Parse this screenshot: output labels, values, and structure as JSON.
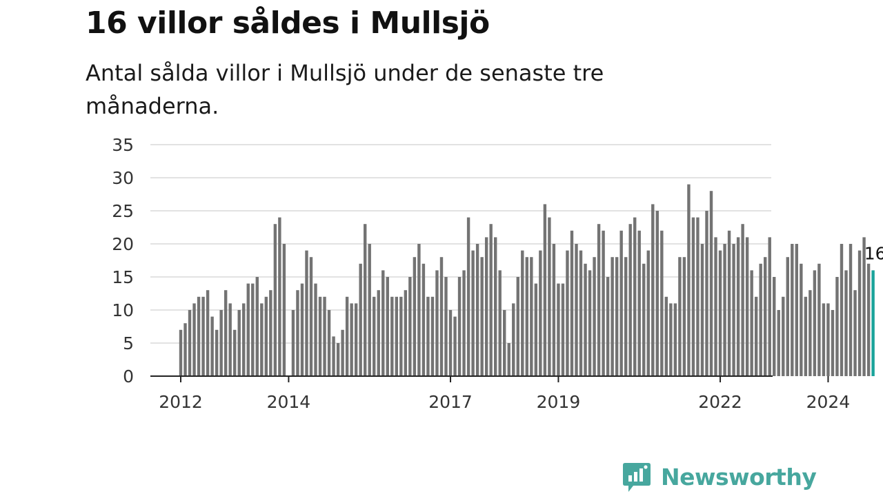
{
  "header": {
    "title": "16 villor såldes i Mullsjö",
    "subtitle": "Antal sålda villor i Mullsjö under de senaste tre månaderna."
  },
  "brand": {
    "name": "Newsworthy",
    "color": "#47a79e",
    "icon": "newsworthy-logo-icon"
  },
  "colors": {
    "bar": "#737373",
    "highlight": "#1aa39a",
    "grid": "#d9d9d9"
  },
  "chart_data": {
    "type": "bar",
    "title": "16 villor såldes i Mullsjö",
    "subtitle": "Antal sålda villor i Mullsjö under de senaste tre månaderna.",
    "xlabel": "",
    "ylabel": "",
    "ylim": [
      0,
      35
    ],
    "yticks": [
      0,
      5,
      10,
      15,
      20,
      25,
      30,
      35
    ],
    "xticks": [
      "2012",
      "2014",
      "2017",
      "2019",
      "2022",
      "2024"
    ],
    "grid": true,
    "legend": "none",
    "frequency": "monthly",
    "start": "2012-01",
    "end": "2024-12",
    "values": [
      7,
      8,
      10,
      11,
      12,
      12,
      13,
      9,
      7,
      10,
      13,
      11,
      7,
      10,
      11,
      14,
      14,
      15,
      11,
      12,
      13,
      23,
      24,
      20,
      null,
      10,
      13,
      14,
      19,
      18,
      14,
      12,
      12,
      10,
      6,
      5,
      7,
      12,
      11,
      11,
      17,
      23,
      20,
      12,
      13,
      16,
      15,
      12,
      12,
      12,
      13,
      15,
      18,
      20,
      17,
      12,
      12,
      16,
      18,
      15,
      10,
      9,
      15,
      16,
      24,
      19,
      20,
      18,
      21,
      23,
      21,
      16,
      10,
      5,
      11,
      15,
      19,
      18,
      18,
      14,
      19,
      26,
      24,
      20,
      14,
      14,
      19,
      22,
      20,
      19,
      17,
      16,
      18,
      23,
      22,
      15,
      18,
      18,
      22,
      18,
      23,
      24,
      22,
      17,
      19,
      26,
      25,
      22,
      12,
      11,
      11,
      18,
      18,
      29,
      24,
      24,
      20,
      25,
      28,
      21,
      19,
      20,
      22,
      20,
      21,
      23,
      21,
      16,
      12,
      17,
      18,
      21,
      15,
      10,
      12,
      18,
      20,
      20,
      17,
      12,
      13,
      16,
      17,
      11,
      11,
      10,
      15,
      20,
      16,
      20,
      13,
      19,
      21,
      17,
      16
    ],
    "last_value_label": "16"
  }
}
